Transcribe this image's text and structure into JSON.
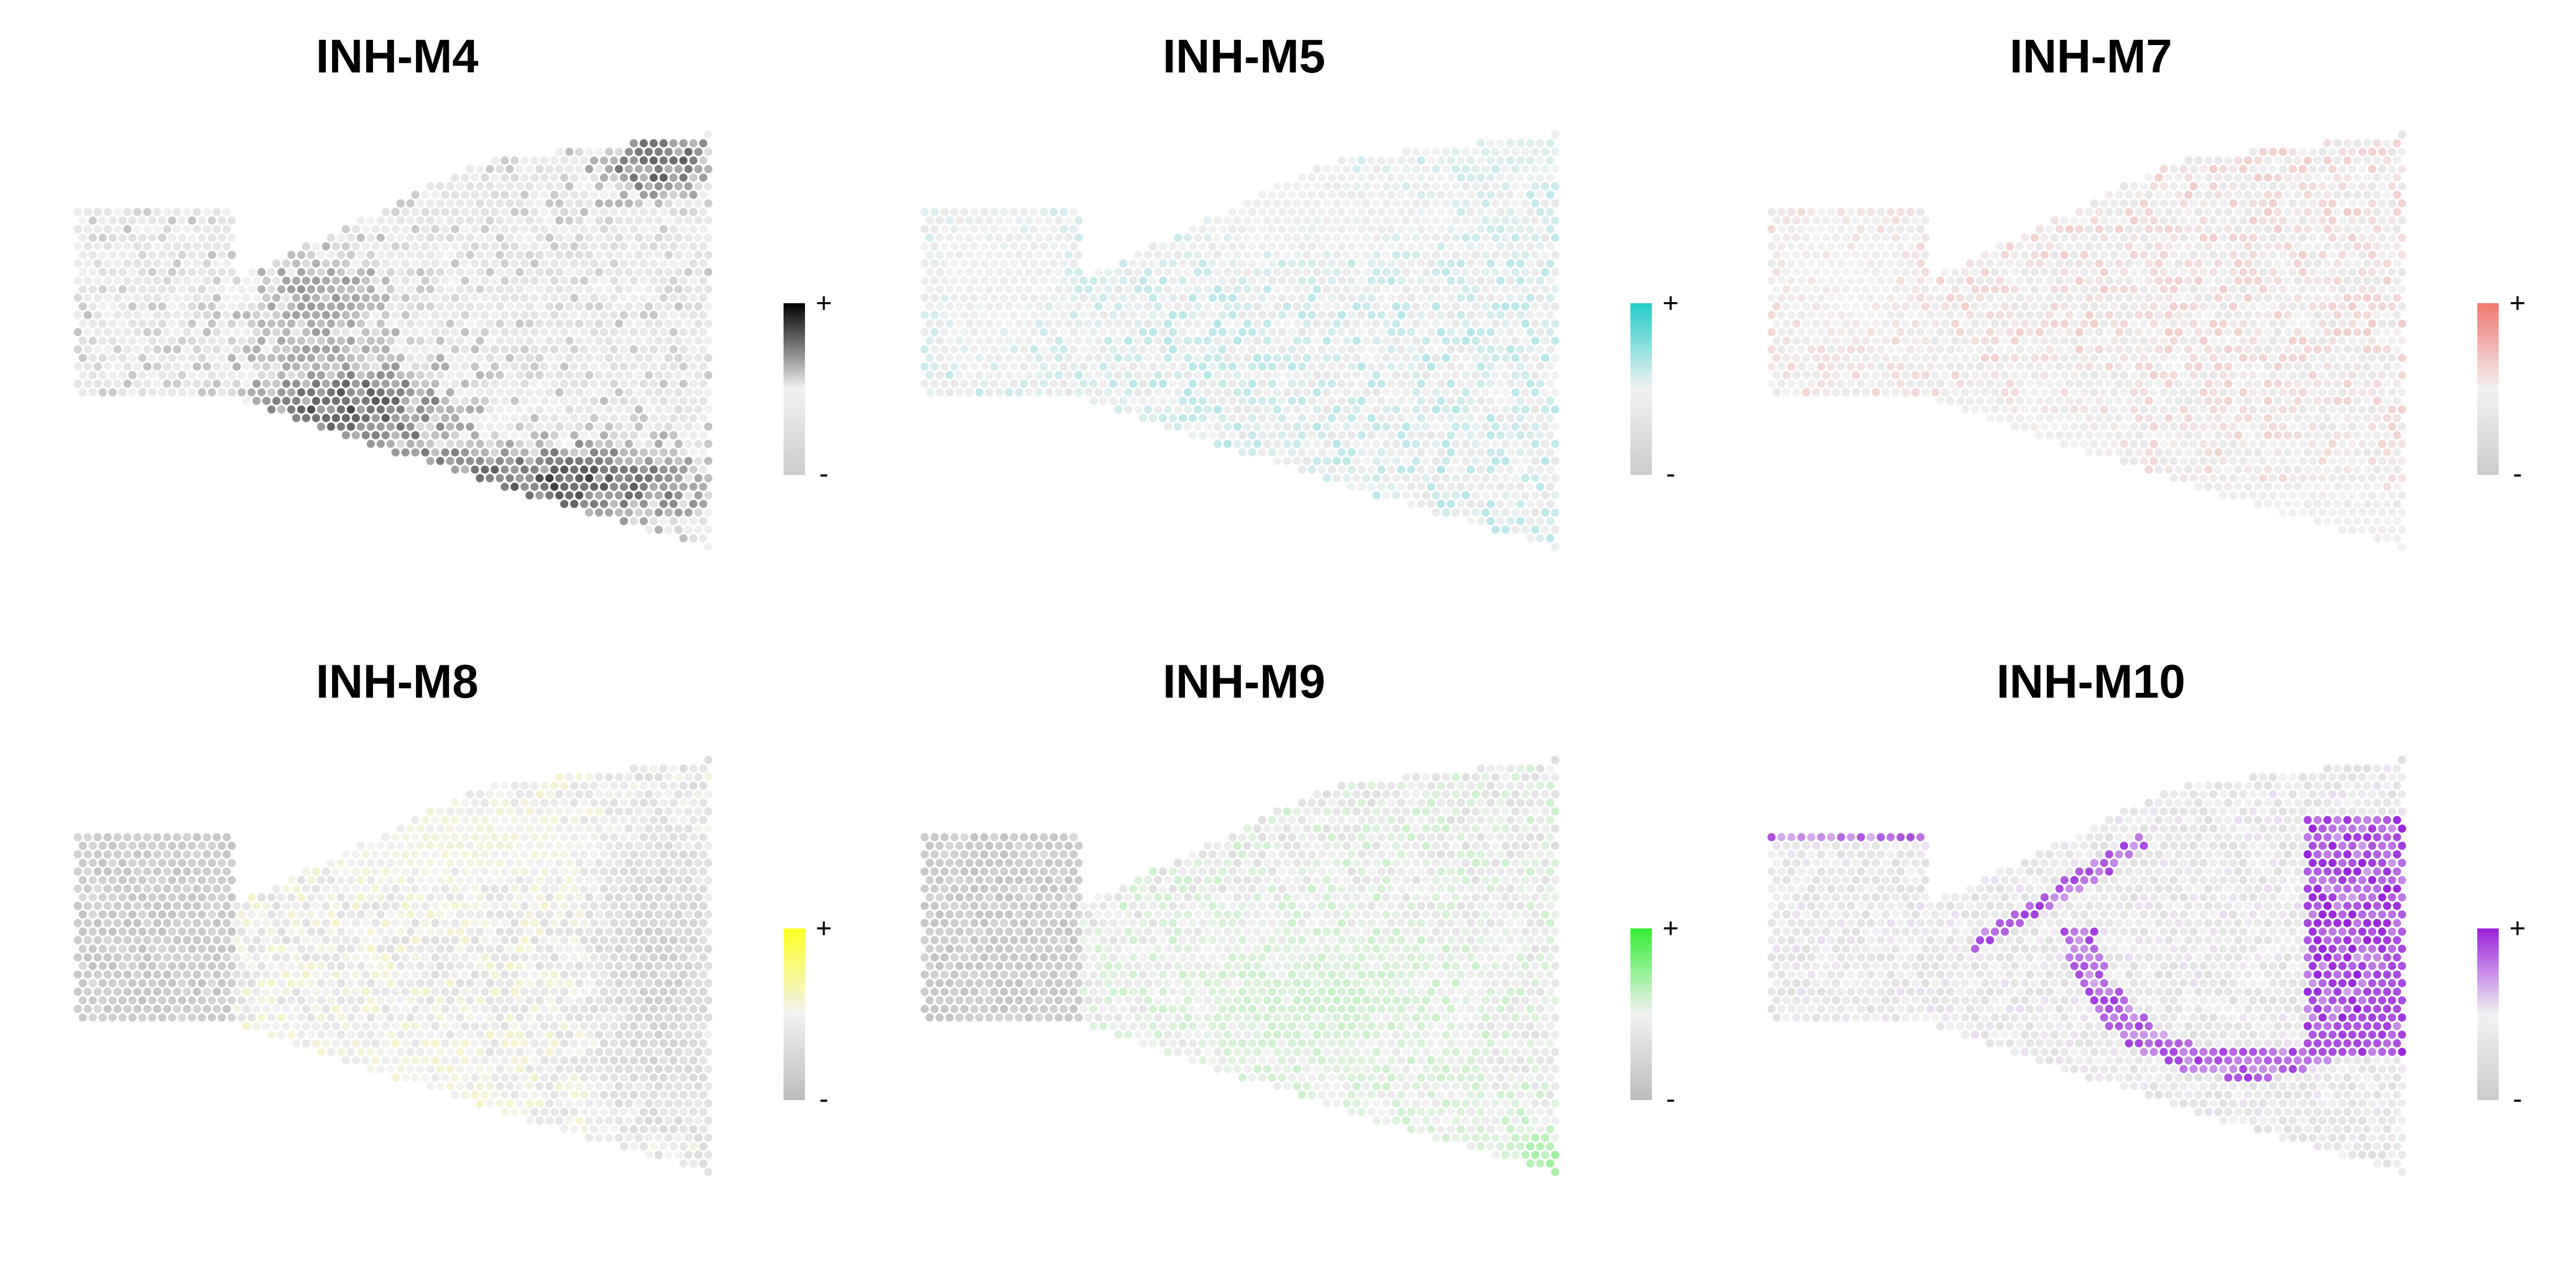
{
  "chart_data": [
    {
      "type": "heatmap",
      "subtype": "spatial-spot-map",
      "title": "INH-M4",
      "low_color": "#cccccc",
      "mid_color": "#f2f2f2",
      "high_color": "#000000",
      "legend": {
        "high": "+",
        "low": "-",
        "placement": "right"
      },
      "hotspots": [
        {
          "region": "upper-right corner",
          "level": 0.85
        },
        {
          "region": "lower band",
          "level": 0.85
        },
        {
          "region": "center-left",
          "level": 0.7
        }
      ],
      "background_level": 0.45
    },
    {
      "type": "heatmap",
      "subtype": "spatial-spot-map",
      "title": "INH-M5",
      "low_color": "#cccccc",
      "mid_color": "#f2f2f2",
      "high_color": "#22cccc",
      "legend": {
        "high": "+",
        "low": "-",
        "placement": "right"
      },
      "hotspots": [
        {
          "region": "upper-right edge",
          "level": 0.55
        },
        {
          "region": "upper band",
          "level": 0.45
        },
        {
          "region": "left lobe",
          "level": 0.45
        }
      ],
      "background_level": 0.5
    },
    {
      "type": "heatmap",
      "subtype": "spatial-spot-map",
      "title": "INH-M7",
      "low_color": "#cccccc",
      "mid_color": "#f2f2f2",
      "high_color": "#f07870",
      "legend": {
        "high": "+",
        "low": "-",
        "placement": "right"
      },
      "hotspots": [
        {
          "region": "left lobe",
          "level": 0.5
        },
        {
          "region": "lower-left",
          "level": 0.45
        },
        {
          "region": "lower-right",
          "level": 0.45
        }
      ],
      "background_level": 0.5
    },
    {
      "type": "heatmap",
      "subtype": "spatial-spot-map",
      "title": "INH-M8",
      "low_color": "#bbbbbb",
      "mid_color": "#f2f2f2",
      "high_color": "#ffff22",
      "legend": {
        "high": "+",
        "low": "-",
        "placement": "right"
      },
      "hotspots": [
        {
          "region": "lower-left body",
          "level": 0.6
        },
        {
          "region": "upper band",
          "level": 0.55
        },
        {
          "region": "left lobe (low)",
          "level": 0.1
        },
        {
          "region": "right side (low)",
          "level": 0.15
        }
      ],
      "background_level": 0.45
    },
    {
      "type": "heatmap",
      "subtype": "spatial-spot-map",
      "title": "INH-M9",
      "low_color": "#bbbbbb",
      "mid_color": "#f2f2f2",
      "high_color": "#33ee33",
      "legend": {
        "high": "+",
        "low": "-",
        "placement": "right"
      },
      "hotspots": [
        {
          "region": "lower body",
          "level": 0.6
        },
        {
          "region": "central band",
          "level": 0.6
        },
        {
          "region": "lower-right corner",
          "level": 0.75
        },
        {
          "region": "left lobe (low)",
          "level": 0.1
        }
      ],
      "background_level": 0.45
    },
    {
      "type": "heatmap",
      "subtype": "spatial-spot-map",
      "title": "INH-M10",
      "low_color": "#cccccc",
      "mid_color": "#f2f2f2",
      "high_color": "#9922dd",
      "legend": {
        "high": "+",
        "low": "-",
        "placement": "right"
      },
      "hotspots": [
        {
          "region": "right block",
          "level": 0.95
        },
        {
          "region": "curved arc",
          "level": 0.9
        },
        {
          "region": "diagonal upper line",
          "level": 0.9
        },
        {
          "region": "left lobe top edge",
          "level": 0.85
        }
      ],
      "background_level": 0.4
    }
  ]
}
